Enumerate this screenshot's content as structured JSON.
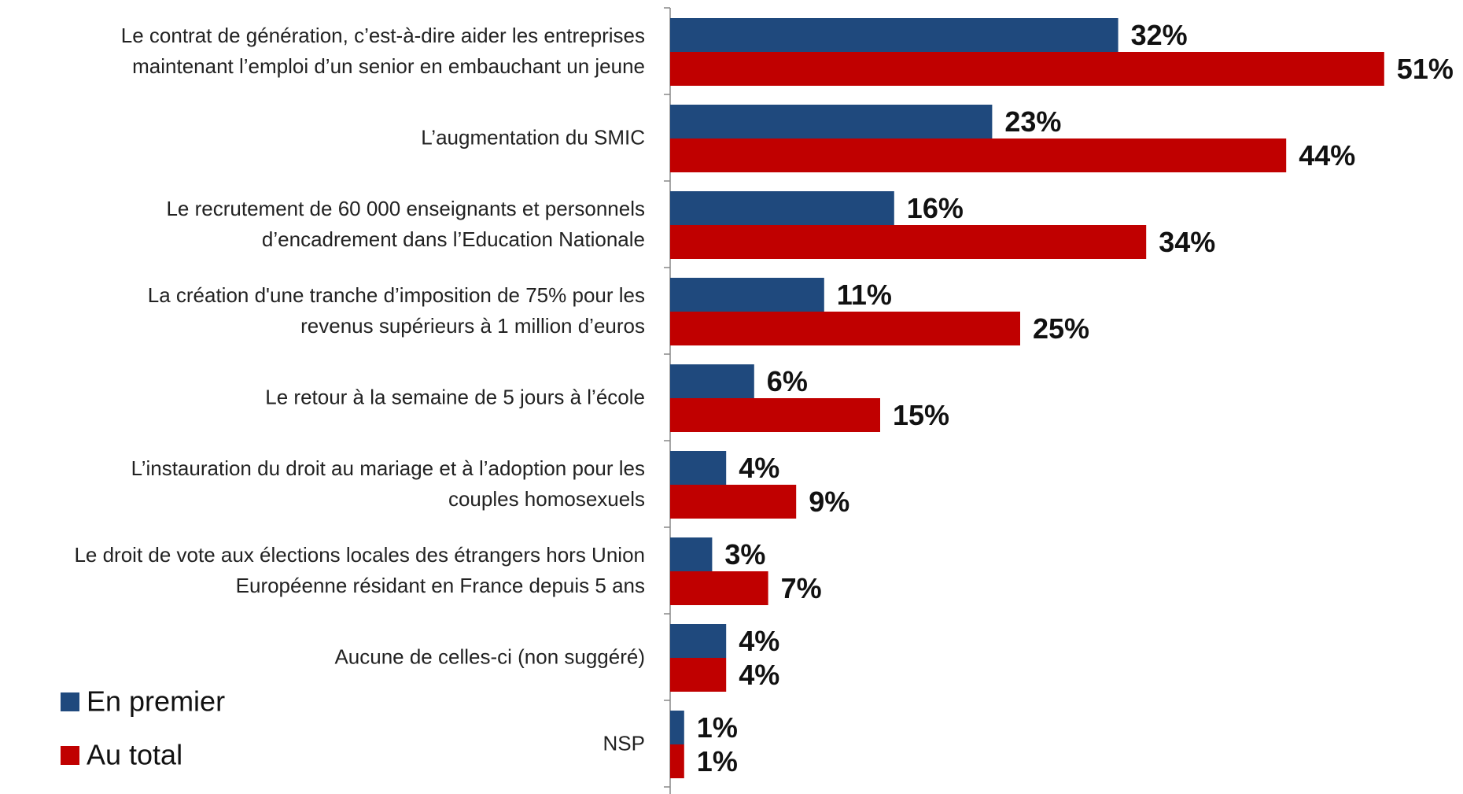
{
  "chart_data": {
    "type": "bar",
    "orientation": "horizontal",
    "categories": [
      "Le contrat de génération, c’est-à-dire aider les entreprises\nmaintenant l’emploi d’un senior en embauchant un jeune",
      "L’augmentation du SMIC",
      "Le recrutement de 60 000 enseignants et personnels\nd’encadrement dans l’Education Nationale",
      "La création d'une tranche d’imposition de 75% pour les\nrevenus supérieurs à 1 million d’euros",
      "Le retour à la semaine de 5 jours à l’école",
      "L’instauration du droit au mariage et à l’adoption pour les\ncouples homosexuels",
      "Le droit de vote aux élections locales des étrangers hors Union\nEuropéenne résidant en France depuis 5 ans",
      "Aucune de celles-ci (non suggéré)",
      "NSP"
    ],
    "series": [
      {
        "name": "En premier",
        "color": "#1f497d",
        "values": [
          32,
          23,
          16,
          11,
          6,
          4,
          3,
          4,
          1
        ],
        "value_labels": [
          "32%",
          "23%",
          "16%",
          "11%",
          "6%",
          "4%",
          "3%",
          "4%",
          "1%"
        ]
      },
      {
        "name": "Au total",
        "color": "#c00000",
        "values": [
          51,
          44,
          34,
          25,
          15,
          9,
          7,
          4,
          1
        ],
        "value_labels": [
          "51%",
          "44%",
          "34%",
          "25%",
          "15%",
          "9%",
          "7%",
          "4%",
          "1%"
        ]
      }
    ],
    "xlim": [
      0,
      55
    ],
    "legend": "bottom-left"
  }
}
